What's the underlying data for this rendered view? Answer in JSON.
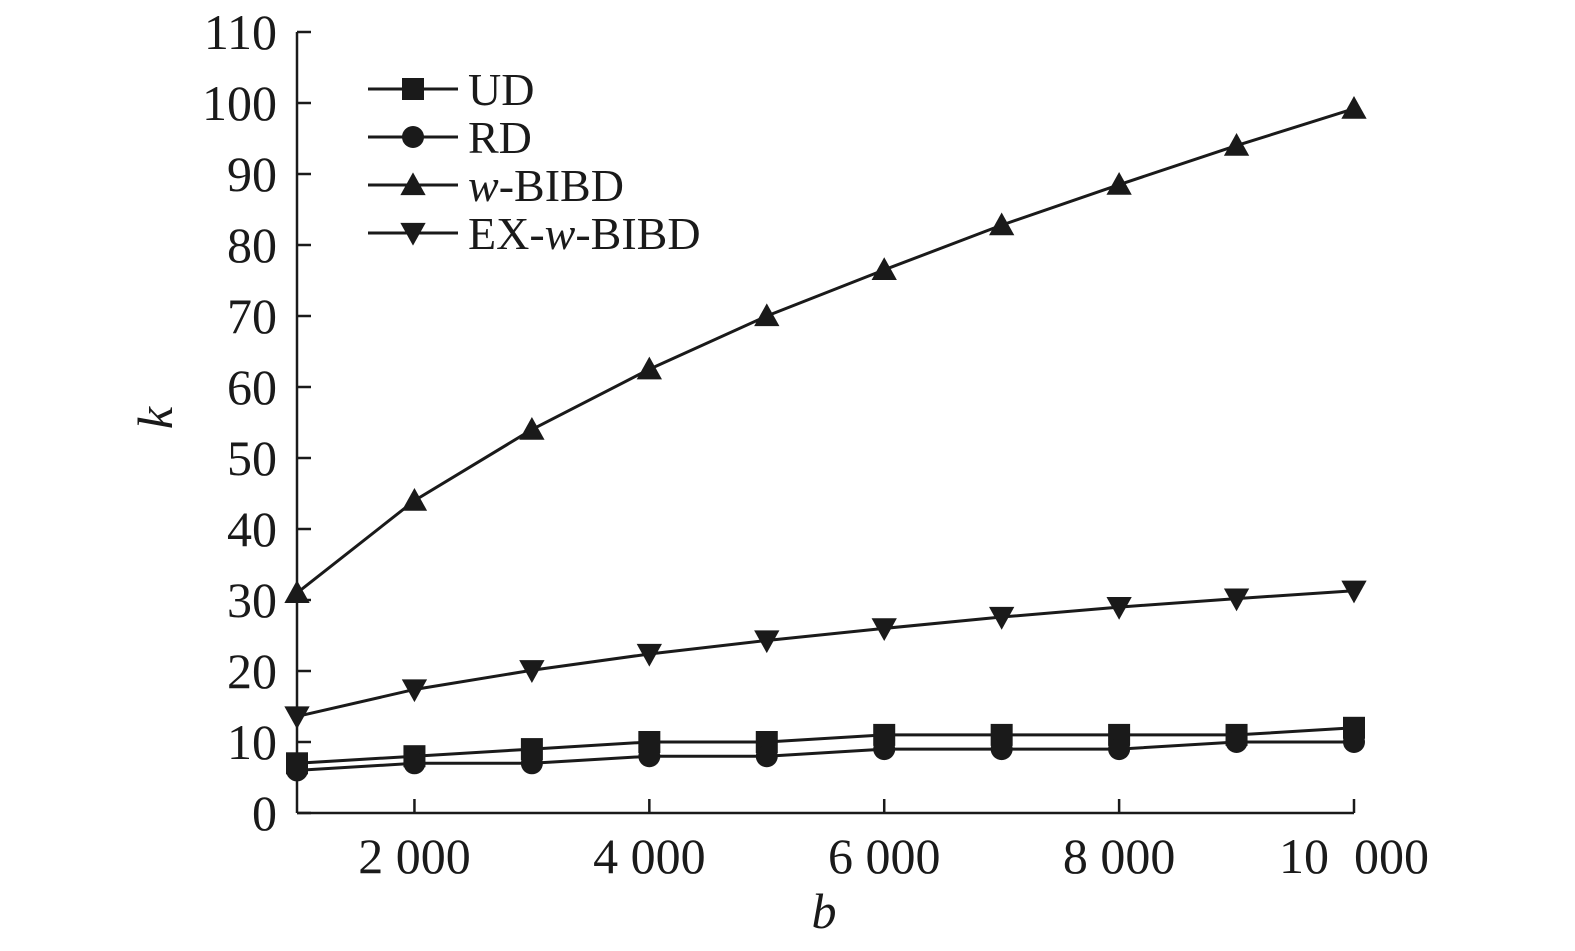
{
  "chart_data": {
    "type": "line",
    "title": "",
    "xlabel": "b",
    "ylabel": "k",
    "x": [
      1000,
      2000,
      3000,
      4000,
      5000,
      6000,
      7000,
      8000,
      9000,
      10000
    ],
    "xlim": [
      1000,
      10000
    ],
    "ylim": [
      0,
      110
    ],
    "xticks": [
      2000,
      4000,
      6000,
      8000,
      10000
    ],
    "xtick_labels": [
      "2 000",
      "4 000",
      "6 000",
      "8 000",
      "10  000"
    ],
    "yticks": [
      0,
      10,
      20,
      30,
      40,
      50,
      60,
      70,
      80,
      90,
      100,
      110
    ],
    "ytick_labels": [
      "0",
      "10",
      "20",
      "30",
      "40",
      "50",
      "60",
      "70",
      "80",
      "90",
      "100",
      "110"
    ],
    "grid": false,
    "legend_position": "top-left",
    "series": [
      {
        "name": "UD",
        "label_parts": [
          {
            "text": "UD",
            "italic": false
          }
        ],
        "marker": "square",
        "values": [
          7,
          8,
          9,
          10,
          10,
          11,
          11,
          11,
          11,
          12
        ]
      },
      {
        "name": "RD",
        "label_parts": [
          {
            "text": "RD",
            "italic": false
          }
        ],
        "marker": "circle",
        "values": [
          6,
          7,
          7,
          8,
          8,
          9,
          9,
          9,
          10,
          10
        ]
      },
      {
        "name": "w-BIBD",
        "label_parts": [
          {
            "text": "w",
            "italic": true
          },
          {
            "text": "-BIBD",
            "italic": false
          }
        ],
        "marker": "triangle-up",
        "values": [
          31,
          44,
          54,
          62.5,
          70,
          76.5,
          82.8,
          88.5,
          94,
          99.2
        ]
      },
      {
        "name": "EX-w-BIBD",
        "label_parts": [
          {
            "text": "EX-",
            "italic": false
          },
          {
            "text": "w",
            "italic": true
          },
          {
            "text": "-BIBD",
            "italic": false
          }
        ],
        "marker": "triangle-down",
        "values": [
          13.6,
          17.4,
          20.1,
          22.4,
          24.3,
          26,
          27.6,
          29,
          30.2,
          31.3
        ]
      }
    ],
    "colors": {
      "line": "#1a1a1a",
      "marker": "#1a1a1a",
      "axis": "#1a1a1a"
    }
  }
}
